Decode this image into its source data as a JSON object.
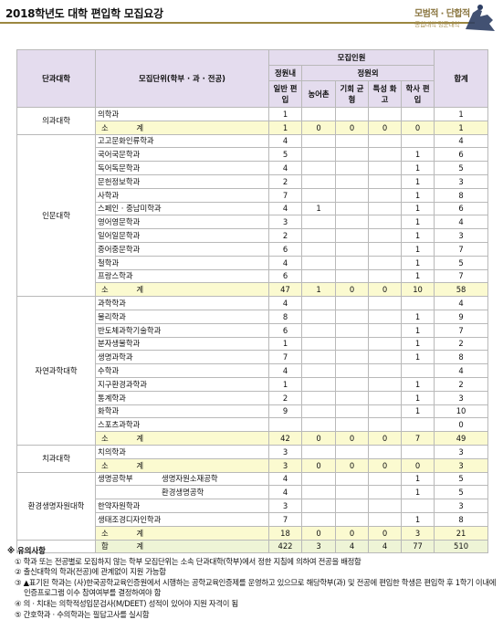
{
  "title": "2018학년도 대학 편입학 모집요강",
  "logo": {
    "text": "모범적 · 단합적",
    "sub": "통합대학 명문대학"
  },
  "table": {
    "headers": {
      "college": "단과대학",
      "unit": "모집단위(학부 · 과 · 전공)",
      "group": "모집인원",
      "in_quota": "정원내",
      "out_quota": "정원외",
      "general": "일반 편입",
      "farm": "농어촌",
      "basic": "기회 균형",
      "special": "특성 화고",
      "bachelor": "학사 편입",
      "sum": "합계"
    },
    "subtotal_label": "소 계",
    "total_label": "합 계",
    "colleges": [
      {
        "name": "의과대학",
        "rows": [
          {
            "unit": "의학과",
            "general": "1",
            "farm": "",
            "basic": "",
            "special": "",
            "bachelor": "",
            "sum": "1"
          }
        ],
        "subtotal": {
          "general": "1",
          "farm": "0",
          "basic": "0",
          "special": "0",
          "bachelor": "0",
          "sum": "1"
        }
      },
      {
        "name": "인문대학",
        "rows": [
          {
            "unit": "고고문화인류학과",
            "general": "4",
            "farm": "",
            "basic": "",
            "special": "",
            "bachelor": "",
            "sum": "4"
          },
          {
            "unit": "국어국문학과",
            "general": "5",
            "farm": "",
            "basic": "",
            "special": "",
            "bachelor": "1",
            "sum": "6"
          },
          {
            "unit": "독어독문학과",
            "general": "4",
            "farm": "",
            "basic": "",
            "special": "",
            "bachelor": "1",
            "sum": "5"
          },
          {
            "unit": "문헌정보학과",
            "general": "2",
            "farm": "",
            "basic": "",
            "special": "",
            "bachelor": "1",
            "sum": "3"
          },
          {
            "unit": "사학과",
            "general": "7",
            "farm": "",
            "basic": "",
            "special": "",
            "bachelor": "1",
            "sum": "8"
          },
          {
            "unit": "스페인 · 중남미학과",
            "general": "4",
            "farm": "1",
            "basic": "",
            "special": "",
            "bachelor": "1",
            "sum": "6"
          },
          {
            "unit": "영어영문학과",
            "general": "3",
            "farm": "",
            "basic": "",
            "special": "",
            "bachelor": "1",
            "sum": "4"
          },
          {
            "unit": "일어일문학과",
            "general": "2",
            "farm": "",
            "basic": "",
            "special": "",
            "bachelor": "1",
            "sum": "3"
          },
          {
            "unit": "중어중문학과",
            "general": "6",
            "farm": "",
            "basic": "",
            "special": "",
            "bachelor": "1",
            "sum": "7"
          },
          {
            "unit": "철학과",
            "general": "4",
            "farm": "",
            "basic": "",
            "special": "",
            "bachelor": "1",
            "sum": "5"
          },
          {
            "unit": "프랑스학과",
            "general": "6",
            "farm": "",
            "basic": "",
            "special": "",
            "bachelor": "1",
            "sum": "7"
          }
        ],
        "subtotal": {
          "general": "47",
          "farm": "1",
          "basic": "0",
          "special": "0",
          "bachelor": "10",
          "sum": "58"
        }
      },
      {
        "name": "자연과학대학",
        "rows": [
          {
            "unit": "과학학과",
            "general": "4",
            "farm": "",
            "basic": "",
            "special": "",
            "bachelor": "",
            "sum": "4"
          },
          {
            "unit": "물리학과",
            "general": "8",
            "farm": "",
            "basic": "",
            "special": "",
            "bachelor": "1",
            "sum": "9"
          },
          {
            "unit": "반도체과학기술학과",
            "general": "6",
            "farm": "",
            "basic": "",
            "special": "",
            "bachelor": "1",
            "sum": "7"
          },
          {
            "unit": "분자생물학과",
            "general": "1",
            "farm": "",
            "basic": "",
            "special": "",
            "bachelor": "1",
            "sum": "2"
          },
          {
            "unit": "생명과학과",
            "general": "7",
            "farm": "",
            "basic": "",
            "special": "",
            "bachelor": "1",
            "sum": "8"
          },
          {
            "unit": "수학과",
            "general": "4",
            "farm": "",
            "basic": "",
            "special": "",
            "bachelor": "",
            "sum": "4"
          },
          {
            "unit": "지구환경과학과",
            "general": "1",
            "farm": "",
            "basic": "",
            "special": "",
            "bachelor": "1",
            "sum": "2"
          },
          {
            "unit": "통계학과",
            "general": "2",
            "farm": "",
            "basic": "",
            "special": "",
            "bachelor": "1",
            "sum": "3"
          },
          {
            "unit": "화학과",
            "general": "9",
            "farm": "",
            "basic": "",
            "special": "",
            "bachelor": "1",
            "sum": "10"
          },
          {
            "unit": "스포츠과학과",
            "general": "",
            "farm": "",
            "basic": "",
            "special": "",
            "bachelor": "",
            "sum": "0"
          }
        ],
        "subtotal": {
          "general": "42",
          "farm": "0",
          "basic": "0",
          "special": "0",
          "bachelor": "7",
          "sum": "49"
        }
      },
      {
        "name": "치과대학",
        "rows": [
          {
            "unit": "치의학과",
            "general": "3",
            "farm": "",
            "basic": "",
            "special": "",
            "bachelor": "",
            "sum": "3"
          }
        ],
        "subtotal": {
          "general": "3",
          "farm": "0",
          "basic": "0",
          "special": "0",
          "bachelor": "0",
          "sum": "3"
        }
      },
      {
        "name": "환경생명자원대학",
        "group_name": "생명공학부",
        "rows": [
          {
            "unit": "생명자원소재공학",
            "general": "4",
            "farm": "",
            "basic": "",
            "special": "",
            "bachelor": "1",
            "sum": "5"
          },
          {
            "unit": "환경생명공학",
            "general": "4",
            "farm": "",
            "basic": "",
            "special": "",
            "bachelor": "1",
            "sum": "5"
          },
          {
            "unit": "한약자원학과",
            "general": "3",
            "farm": "",
            "basic": "",
            "special": "",
            "bachelor": "",
            "sum": "3"
          },
          {
            "unit": "생태조경디자인학과",
            "general": "7",
            "farm": "",
            "basic": "",
            "special": "",
            "bachelor": "1",
            "sum": "8"
          }
        ],
        "subtotal": {
          "general": "18",
          "farm": "0",
          "basic": "0",
          "special": "0",
          "bachelor": "3",
          "sum": "21"
        }
      }
    ],
    "total": {
      "general": "422",
      "farm": "3",
      "basic": "4",
      "special": "4",
      "bachelor": "77",
      "sum": "510"
    }
  },
  "notes": {
    "title": "※ 유의사항",
    "items": [
      "① 학과 또는 전공별로 모집하지 않는 학부 모집단위는 소속 단과대학(학부)에서 정한 지침에 의하여 전공을 배정함",
      "② 출신대학의 학과(전공)에 관계없이 지원 가능함",
      "③ ▲표기된 학과는 (사)한국공학교육인증원에서 시행하는 공학교육인증제를 운영하고 있으므로 해당학부(과) 및 전공에 편입한 학생은 편입학 후 1학기 이내에 인증프로그램 이수 참여여부를 결정하여야 함",
      "④ 의 · 치대는 의학적성입문검사(M/DEET) 성적이 있어야 지원 자격이 됨",
      "⑤ 간호학과 · 수의학과는 필답고사를 실시함"
    ]
  }
}
